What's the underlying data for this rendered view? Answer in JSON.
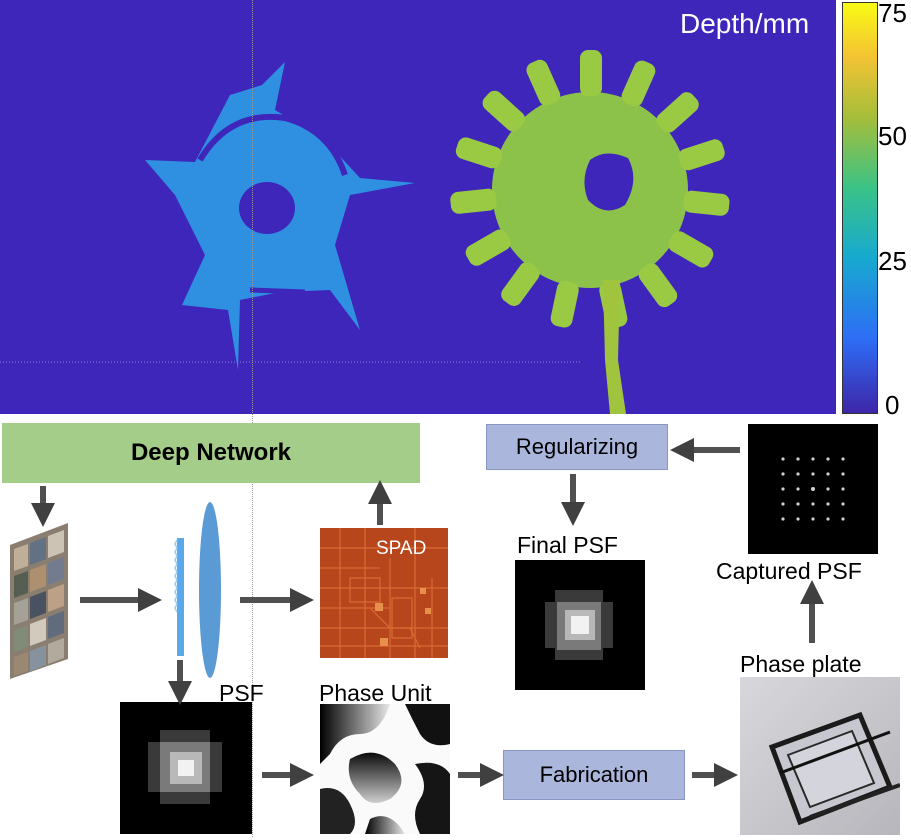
{
  "depth_panel": {
    "colorbar_title": "Depth/mm",
    "colorbar_ticks": [
      "75",
      "50",
      "25",
      "0"
    ],
    "colormap": [
      "#3e26a8",
      "#2e6df6",
      "#17aacf",
      "#3bc386",
      "#a5be3a",
      "#f4c333",
      "#f9fb15"
    ],
    "background_color": "#3e26bb"
  },
  "pipeline": {
    "deep_network": "Deep Network",
    "regularizing": "Regularizing",
    "final_psf": "Final PSF",
    "captured_psf": "Captured PSF",
    "spad": "SPAD",
    "psf": "PSF",
    "phase_unit": "Phase Unit",
    "fabrication": "Fabrication",
    "phase_plate": "Phase plate"
  }
}
